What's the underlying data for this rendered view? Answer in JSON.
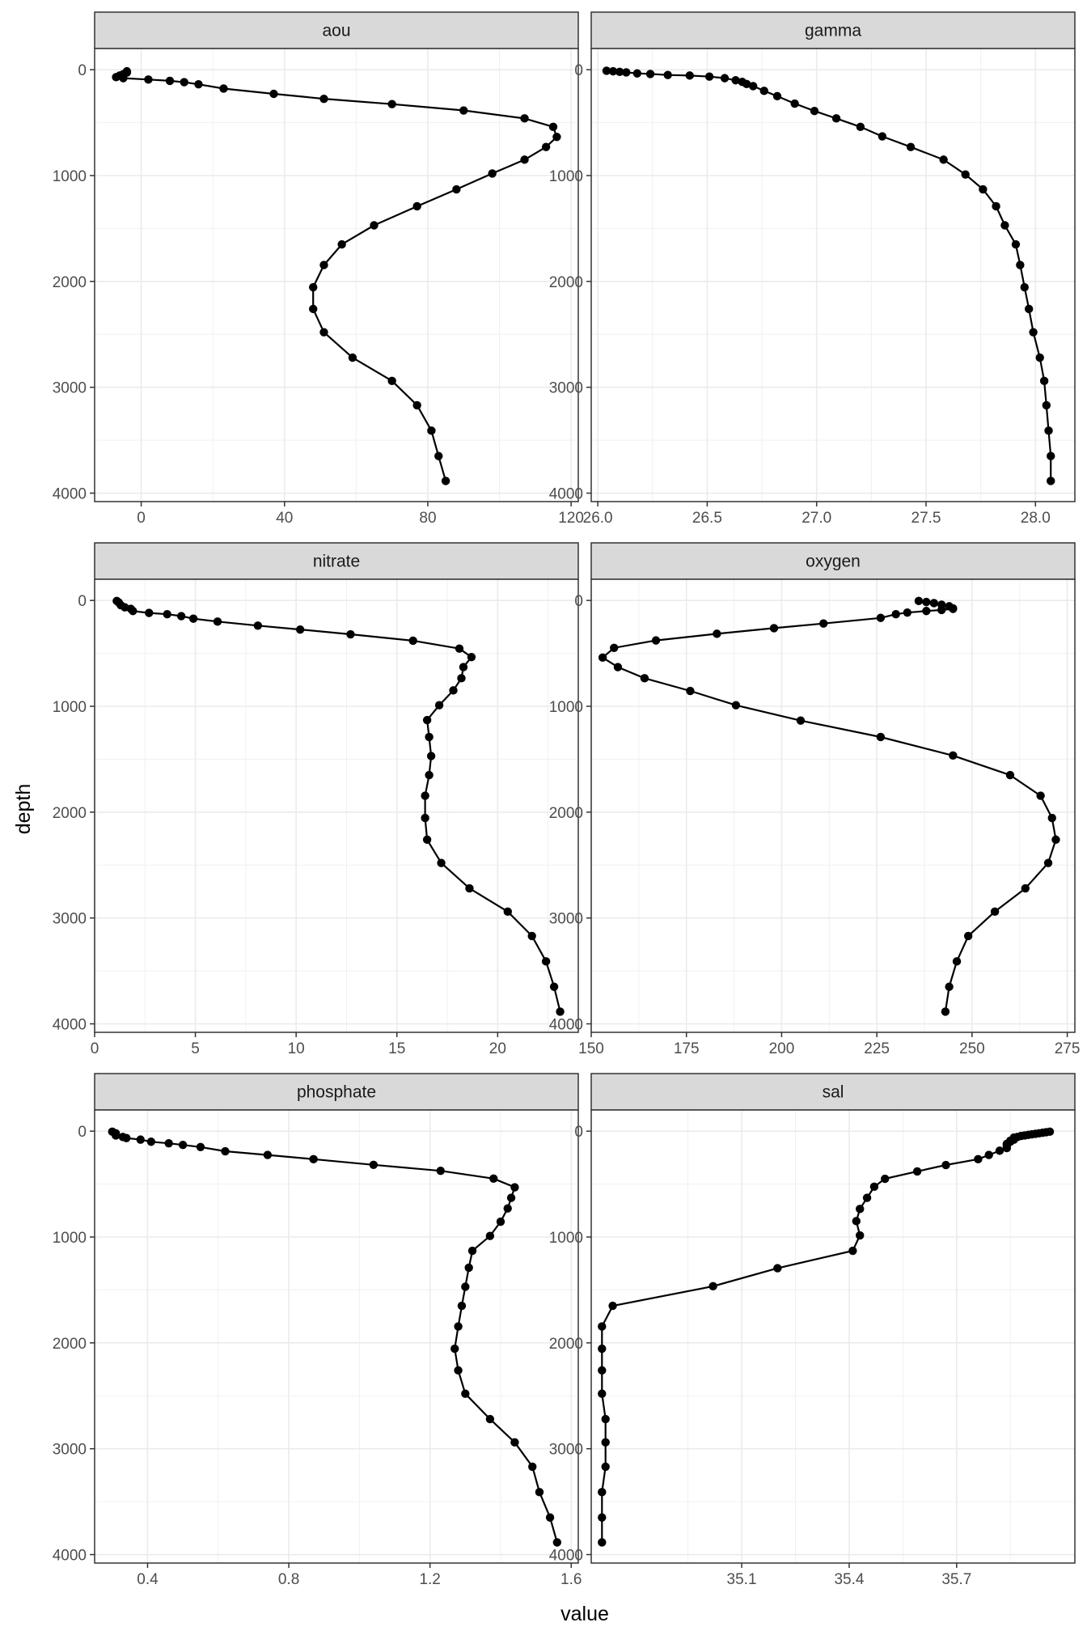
{
  "chart_data": {
    "type": "line",
    "layout": "facet_wrap",
    "xlabel": "value",
    "ylabel": "depth",
    "y_reversed": true,
    "ylim": [
      4080,
      -200
    ],
    "y_ticks": [
      0,
      1000,
      2000,
      3000,
      4000
    ],
    "grid": true,
    "depth": [
      0,
      10,
      20,
      30,
      50,
      75,
      100,
      125,
      150,
      200,
      250,
      300,
      400,
      500,
      600,
      700,
      800,
      1000,
      1200,
      1400,
      1600,
      1800,
      2000,
      2200,
      2400,
      2600,
      2800,
      3000,
      3200,
      3400,
      3600,
      3800,
      4000
    ],
    "panels": [
      {
        "name": "aou",
        "xlim": [
          -13,
          122
        ],
        "x_ticks": [
          0,
          40,
          80,
          120
        ],
        "x_tick_labels": [
          "0",
          "40",
          "80",
          "120"
        ],
        "points": [
          [
            -4,
            15
          ],
          [
            -4,
            27
          ],
          [
            -5,
            42
          ],
          [
            -6,
            55
          ],
          [
            -7,
            70
          ],
          [
            -5,
            80
          ],
          [
            2,
            93
          ],
          [
            8,
            105
          ],
          [
            12,
            118
          ],
          [
            16,
            138
          ],
          [
            23,
            178
          ],
          [
            37,
            228
          ],
          [
            51,
            275
          ],
          [
            70,
            325
          ],
          [
            90,
            385
          ],
          [
            107,
            460
          ],
          [
            115,
            540
          ],
          [
            116,
            635
          ],
          [
            113,
            730
          ],
          [
            107,
            850
          ],
          [
            98,
            980
          ],
          [
            88,
            1130
          ],
          [
            77,
            1290
          ],
          [
            65,
            1470
          ],
          [
            56,
            1650
          ],
          [
            51,
            1845
          ],
          [
            48,
            2055
          ],
          [
            48,
            2260
          ],
          [
            51,
            2480
          ],
          [
            59,
            2720
          ],
          [
            70,
            2940
          ],
          [
            77,
            3170
          ],
          [
            81,
            3410
          ],
          [
            83,
            3650
          ],
          [
            85,
            3885
          ]
        ]
      },
      {
        "name": "gamma",
        "xlim": [
          25.97,
          28.18
        ],
        "x_ticks": [
          26.0,
          26.5,
          27.0,
          27.5,
          28.0
        ],
        "x_tick_labels": [
          "26.0",
          "26.5",
          "27.0",
          "27.5",
          "28.0"
        ],
        "points": [
          [
            26.04,
            10
          ],
          [
            26.07,
            15
          ],
          [
            26.1,
            20
          ],
          [
            26.13,
            25
          ],
          [
            26.18,
            35
          ],
          [
            26.24,
            40
          ],
          [
            26.32,
            50
          ],
          [
            26.42,
            55
          ],
          [
            26.51,
            65
          ],
          [
            26.58,
            80
          ],
          [
            26.63,
            100
          ],
          [
            26.66,
            115
          ],
          [
            26.68,
            135
          ],
          [
            26.71,
            155
          ],
          [
            26.76,
            200
          ],
          [
            26.82,
            250
          ],
          [
            26.9,
            320
          ],
          [
            26.99,
            390
          ],
          [
            27.09,
            460
          ],
          [
            27.2,
            540
          ],
          [
            27.3,
            630
          ],
          [
            27.43,
            730
          ],
          [
            27.58,
            850
          ],
          [
            27.68,
            990
          ],
          [
            27.76,
            1130
          ],
          [
            27.82,
            1290
          ],
          [
            27.86,
            1470
          ],
          [
            27.91,
            1650
          ],
          [
            27.93,
            1845
          ],
          [
            27.95,
            2055
          ],
          [
            27.97,
            2260
          ],
          [
            27.99,
            2480
          ],
          [
            28.02,
            2720
          ],
          [
            28.04,
            2940
          ],
          [
            28.05,
            3170
          ],
          [
            28.06,
            3410
          ],
          [
            28.07,
            3650
          ],
          [
            28.07,
            3885
          ]
        ]
      },
      {
        "name": "nitrate",
        "xlim": [
          0,
          24
        ],
        "x_ticks": [
          0,
          5,
          10,
          15,
          20
        ],
        "x_tick_labels": [
          "0",
          "5",
          "10",
          "15",
          "20"
        ],
        "points": [
          [
            1.1,
            5
          ],
          [
            1.2,
            20
          ],
          [
            1.3,
            45
          ],
          [
            1.5,
            65
          ],
          [
            1.8,
            80
          ],
          [
            1.9,
            100
          ],
          [
            2.7,
            118
          ],
          [
            3.6,
            130
          ],
          [
            4.3,
            148
          ],
          [
            4.9,
            172
          ],
          [
            6.1,
            200
          ],
          [
            8.1,
            238
          ],
          [
            10.2,
            275
          ],
          [
            12.7,
            320
          ],
          [
            15.8,
            380
          ],
          [
            18.1,
            455
          ],
          [
            18.7,
            535
          ],
          [
            18.3,
            630
          ],
          [
            18.2,
            735
          ],
          [
            17.8,
            850
          ],
          [
            17.1,
            990
          ],
          [
            16.5,
            1130
          ],
          [
            16.6,
            1290
          ],
          [
            16.7,
            1470
          ],
          [
            16.6,
            1650
          ],
          [
            16.4,
            1845
          ],
          [
            16.4,
            2055
          ],
          [
            16.5,
            2260
          ],
          [
            17.2,
            2480
          ],
          [
            18.6,
            2720
          ],
          [
            20.5,
            2940
          ],
          [
            21.7,
            3170
          ],
          [
            22.4,
            3410
          ],
          [
            22.8,
            3650
          ],
          [
            23.1,
            3885
          ]
        ]
      },
      {
        "name": "oxygen",
        "xlim": [
          150,
          277
        ],
        "x_ticks": [
          150,
          175,
          200,
          225,
          250,
          275
        ],
        "x_tick_labels": [
          "150",
          "175",
          "200",
          "225",
          "250",
          "275"
        ],
        "points": [
          [
            236,
            5
          ],
          [
            238,
            15
          ],
          [
            240,
            25
          ],
          [
            242,
            40
          ],
          [
            244,
            55
          ],
          [
            245,
            75
          ],
          [
            245,
            80
          ],
          [
            242,
            90
          ],
          [
            238,
            100
          ],
          [
            233,
            115
          ],
          [
            230,
            130
          ],
          [
            226,
            165
          ],
          [
            211,
            218
          ],
          [
            198,
            262
          ],
          [
            183,
            315
          ],
          [
            167,
            378
          ],
          [
            156,
            448
          ],
          [
            153,
            540
          ],
          [
            157,
            630
          ],
          [
            164,
            735
          ],
          [
            176,
            855
          ],
          [
            188,
            990
          ],
          [
            205,
            1135
          ],
          [
            226,
            1290
          ],
          [
            245,
            1465
          ],
          [
            260,
            1650
          ],
          [
            268,
            1845
          ],
          [
            271,
            2055
          ],
          [
            272,
            2260
          ],
          [
            270,
            2480
          ],
          [
            264,
            2720
          ],
          [
            256,
            2940
          ],
          [
            249,
            3170
          ],
          [
            246,
            3410
          ],
          [
            244,
            3650
          ],
          [
            243,
            3885
          ]
        ]
      },
      {
        "name": "phosphate",
        "xlim": [
          0.25,
          1.62
        ],
        "x_ticks": [
          0.4,
          0.8,
          1.2,
          1.6
        ],
        "x_tick_labels": [
          "0.4",
          "0.8",
          "1.2",
          "1.6"
        ],
        "points": [
          [
            0.3,
            5
          ],
          [
            0.31,
            20
          ],
          [
            0.31,
            40
          ],
          [
            0.33,
            55
          ],
          [
            0.34,
            65
          ],
          [
            0.38,
            80
          ],
          [
            0.41,
            100
          ],
          [
            0.46,
            115
          ],
          [
            0.5,
            130
          ],
          [
            0.55,
            150
          ],
          [
            0.62,
            190
          ],
          [
            0.74,
            225
          ],
          [
            0.87,
            265
          ],
          [
            1.04,
            318
          ],
          [
            1.23,
            375
          ],
          [
            1.38,
            448
          ],
          [
            1.44,
            530
          ],
          [
            1.43,
            630
          ],
          [
            1.42,
            730
          ],
          [
            1.4,
            855
          ],
          [
            1.37,
            990
          ],
          [
            1.32,
            1130
          ],
          [
            1.31,
            1290
          ],
          [
            1.3,
            1470
          ],
          [
            1.29,
            1650
          ],
          [
            1.28,
            1845
          ],
          [
            1.27,
            2055
          ],
          [
            1.28,
            2260
          ],
          [
            1.3,
            2480
          ],
          [
            1.37,
            2720
          ],
          [
            1.44,
            2940
          ],
          [
            1.49,
            3170
          ],
          [
            1.51,
            3410
          ],
          [
            1.54,
            3650
          ],
          [
            1.56,
            3885
          ]
        ]
      },
      {
        "name": "sal",
        "xlim": [
          34.68,
          36.03
        ],
        "x_ticks": [
          35.1,
          35.4,
          35.7
        ],
        "x_tick_labels": [
          "35.1",
          "35.4",
          "35.7"
        ],
        "points": [
          [
            35.96,
            5
          ],
          [
            35.95,
            10
          ],
          [
            35.94,
            15
          ],
          [
            35.93,
            20
          ],
          [
            35.92,
            25
          ],
          [
            35.91,
            30
          ],
          [
            35.9,
            35
          ],
          [
            35.89,
            40
          ],
          [
            35.88,
            45
          ],
          [
            35.87,
            55
          ],
          [
            35.86,
            60
          ],
          [
            35.86,
            70
          ],
          [
            35.86,
            80
          ],
          [
            35.85,
            90
          ],
          [
            35.85,
            100
          ],
          [
            35.84,
            120
          ],
          [
            35.84,
            140
          ],
          [
            35.84,
            160
          ],
          [
            35.82,
            185
          ],
          [
            35.79,
            225
          ],
          [
            35.76,
            265
          ],
          [
            35.67,
            320
          ],
          [
            35.59,
            380
          ],
          [
            35.5,
            450
          ],
          [
            35.47,
            525
          ],
          [
            35.45,
            630
          ],
          [
            35.43,
            735
          ],
          [
            35.42,
            850
          ],
          [
            35.43,
            985
          ],
          [
            35.41,
            1130
          ],
          [
            35.2,
            1295
          ],
          [
            35.02,
            1465
          ],
          [
            34.74,
            1650
          ],
          [
            34.71,
            1845
          ],
          [
            34.71,
            2055
          ],
          [
            34.71,
            2260
          ],
          [
            34.71,
            2480
          ],
          [
            34.72,
            2720
          ],
          [
            34.72,
            2940
          ],
          [
            34.72,
            3170
          ],
          [
            34.71,
            3410
          ],
          [
            34.71,
            3650
          ],
          [
            34.71,
            3885
          ]
        ]
      }
    ]
  }
}
